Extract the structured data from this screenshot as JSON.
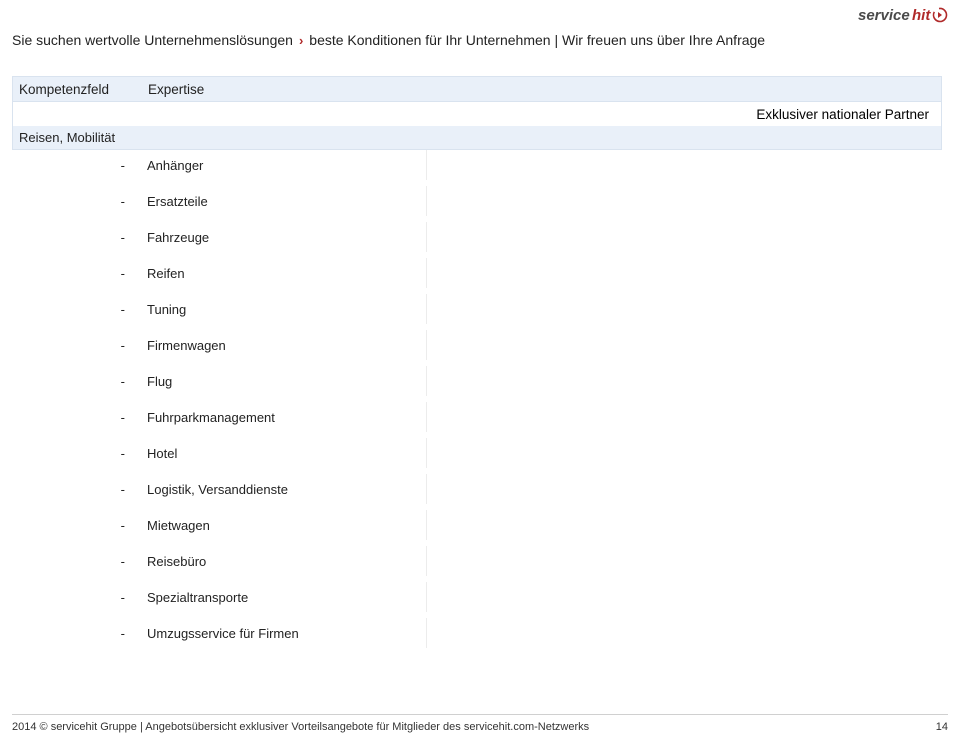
{
  "logo": {
    "text1": "service",
    "text2": "hit",
    "color1": "#4a4a4a",
    "color2": "#b02a2a"
  },
  "tagline": {
    "part1": "Sie suchen wertvolle Unternehmenslösungen",
    "part2": "beste Konditionen für Ihr Unternehmen | Wir freuen uns über Ihre Anfrage"
  },
  "header": {
    "col1": "Kompetenzfeld",
    "col2": "Expertise",
    "col3": "Exklusiver nationaler Partner"
  },
  "category": "Reisen, Mobilität",
  "items": [
    "Anhänger",
    "Ersatzteile",
    "Fahrzeuge",
    "Reifen",
    "Tuning",
    "Firmenwagen",
    "Flug",
    "Fuhrparkmanagement",
    "Hotel",
    "Logistik, Versanddienste",
    "Mietwagen",
    "Reisebüro",
    "Spezialtransporte",
    "Umzugsservice für Firmen"
  ],
  "footer": {
    "left": "2014 © servicehit Gruppe   |   Angebotsübersicht exklusiver Vorteilsangebote für Mitglieder des servicehit.com-Netzwerks",
    "page": "14"
  },
  "colors": {
    "header_bg": "#e9f0f9",
    "header_border": "#d9e3ef",
    "row_border": "#ececec",
    "text": "#222222",
    "accent": "#b02a2a"
  }
}
